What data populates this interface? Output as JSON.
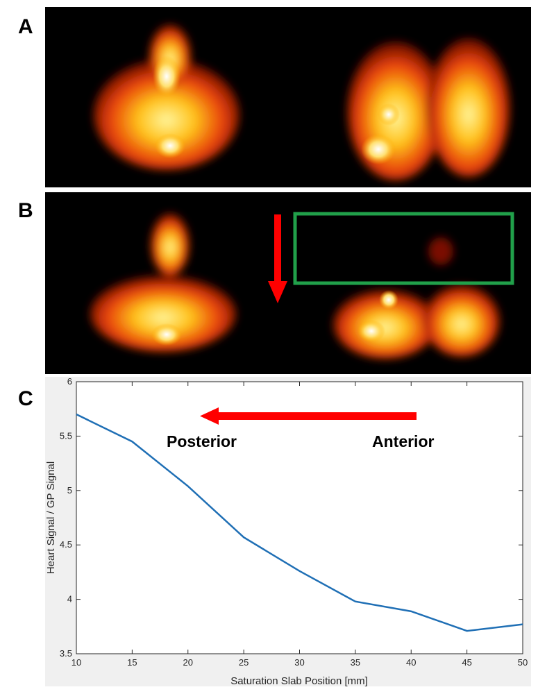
{
  "panels": {
    "a": "A",
    "b": "B",
    "c": "C"
  },
  "colors": {
    "line": "#1f6fb5",
    "arrow": "#ff0000",
    "box": "#21a04a"
  },
  "chart_data": {
    "type": "line",
    "title": "",
    "xlabel": "Saturation Slab Position [mm]",
    "ylabel": "Heart Signal / GP Signal",
    "xlim": [
      10,
      50
    ],
    "ylim": [
      3.5,
      6
    ],
    "xticks": [
      10,
      15,
      20,
      25,
      30,
      35,
      40,
      45,
      50
    ],
    "yticks": [
      3.5,
      4,
      4.5,
      5,
      5.5,
      6
    ],
    "ytick_labels": [
      "3.5",
      "4",
      "4.5",
      "5",
      "5.5",
      "6"
    ],
    "grid": false,
    "x": [
      10,
      15,
      20,
      25,
      30,
      35,
      40,
      45,
      50
    ],
    "series": [
      {
        "values": [
          5.7,
          5.45,
          5.04,
          4.57,
          4.26,
          3.98,
          3.89,
          3.71,
          3.77
        ]
      }
    ],
    "annotations": {
      "left_text": "Posterior",
      "right_text": "Anterior"
    }
  }
}
